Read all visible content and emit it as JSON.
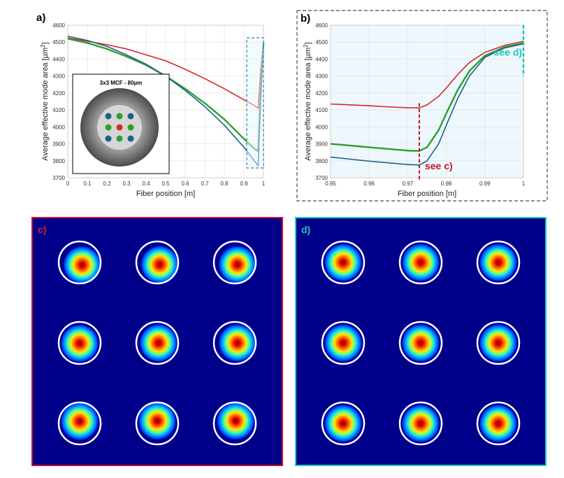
{
  "chart_data": [
    {
      "panel": "a",
      "panel_label": "a)",
      "type": "line",
      "xlabel": "Fiber position [m]",
      "ylabel": "Average effective mode area [µm²]",
      "ylabel_base": "Average effective mode area [µm",
      "ylabel_sup": "2",
      "ylabel_close": "]",
      "xlim": [
        0,
        1
      ],
      "ylim": [
        3700,
        4600
      ],
      "xticks": [
        "0",
        "0.1",
        "0.2",
        "0.3",
        "0.4",
        "0.5",
        "0.6",
        "0.7",
        "0.8",
        "0.9",
        "1"
      ],
      "yticks": [
        "3700",
        "3800",
        "3900",
        "4000",
        "4100",
        "4200",
        "4300",
        "4400",
        "4500",
        "4600"
      ],
      "grid": true,
      "series": [
        {
          "name": "red",
          "color": "#d62728",
          "x": [
            0,
            0.1,
            0.2,
            0.3,
            0.4,
            0.5,
            0.6,
            0.7,
            0.8,
            0.9,
            0.95,
            0.973,
            0.985,
            1
          ],
          "y": [
            4525,
            4505,
            4485,
            4460,
            4425,
            4390,
            4340,
            4285,
            4225,
            4160,
            4128,
            4110,
            4320,
            4500
          ]
        },
        {
          "name": "green",
          "color": "#2ca02c",
          "x": [
            0,
            0.1,
            0.2,
            0.3,
            0.4,
            0.5,
            0.6,
            0.7,
            0.8,
            0.9,
            0.95,
            0.973,
            0.985,
            1
          ],
          "y": [
            4520,
            4495,
            4460,
            4415,
            4365,
            4300,
            4225,
            4140,
            4045,
            3930,
            3875,
            3855,
            4200,
            4495
          ]
        },
        {
          "name": "blue",
          "color": "#1f5f8b",
          "x": [
            0,
            0.1,
            0.2,
            0.3,
            0.4,
            0.5,
            0.6,
            0.7,
            0.8,
            0.9,
            0.95,
            0.973,
            0.985,
            1
          ],
          "y": [
            4535,
            4510,
            4475,
            4425,
            4370,
            4300,
            4215,
            4120,
            4010,
            3880,
            3805,
            3770,
            4150,
            4490
          ]
        }
      ],
      "inset": {
        "title": "3x3 MCF - 80µm",
        "core_colors": [
          [
            "#1f5f8b",
            "#2ca02c",
            "#1f5f8b"
          ],
          [
            "#2ca02c",
            "#d62728",
            "#2ca02c"
          ],
          [
            "#1f5f8b",
            "#2ca02c",
            "#1f5f8b"
          ]
        ]
      }
    },
    {
      "panel": "b",
      "panel_label": "b)",
      "type": "line",
      "xlabel": "Fiber position [m]",
      "ylabel": "Average effective mode area [µm²]",
      "ylabel_base": "Average effective mode area [µm",
      "ylabel_sup": "2",
      "ylabel_close": "]",
      "xlim": [
        0.95,
        1
      ],
      "ylim": [
        3700,
        4600
      ],
      "xticks": [
        "0.95",
        "0.96",
        "0.97",
        "0.98",
        "0.99",
        "1"
      ],
      "yticks": [
        "3700",
        "3800",
        "3900",
        "4000",
        "4100",
        "4200",
        "4300",
        "4400",
        "4500",
        "4600"
      ],
      "grid": true,
      "annotations": [
        {
          "text": "see c)",
          "x": 0.973,
          "color": "#c8102e"
        },
        {
          "text": "see d)",
          "x": 1.0,
          "color": "#14c8b4"
        }
      ],
      "series": [
        {
          "name": "red",
          "color": "#d62728",
          "x": [
            0.95,
            0.955,
            0.96,
            0.965,
            0.97,
            0.973,
            0.975,
            0.978,
            0.98,
            0.983,
            0.986,
            0.99,
            0.995,
            1
          ],
          "y": [
            4135,
            4130,
            4125,
            4118,
            4113,
            4112,
            4130,
            4180,
            4230,
            4310,
            4380,
            4440,
            4480,
            4505
          ]
        },
        {
          "name": "green",
          "color": "#2ca02c",
          "x": [
            0.95,
            0.955,
            0.96,
            0.965,
            0.97,
            0.973,
            0.975,
            0.978,
            0.98,
            0.983,
            0.986,
            0.99,
            0.995,
            1
          ],
          "y": [
            3900,
            3890,
            3880,
            3870,
            3860,
            3858,
            3880,
            3980,
            4080,
            4220,
            4330,
            4420,
            4470,
            4495
          ]
        },
        {
          "name": "blue",
          "color": "#1f5f8b",
          "x": [
            0.95,
            0.955,
            0.96,
            0.965,
            0.97,
            0.973,
            0.975,
            0.978,
            0.98,
            0.983,
            0.986,
            0.99,
            0.995,
            1
          ],
          "y": [
            3822,
            3810,
            3798,
            3788,
            3778,
            3775,
            3800,
            3900,
            4010,
            4170,
            4300,
            4410,
            4465,
            4490
          ]
        }
      ]
    },
    {
      "panel": "c",
      "panel_label": "c)",
      "type": "heatmap",
      "frame_color": "#c8102e",
      "mode_offsets": [
        [
          [
            0.12,
            0.12
          ],
          [
            0.12,
            0.1
          ],
          [
            0.12,
            0.1
          ]
        ],
        [
          [
            0.0,
            0.02
          ],
          [
            0.06,
            0.0
          ],
          [
            0.12,
            0.0
          ]
        ],
        [
          [
            0.0,
            -0.1
          ],
          [
            0.0,
            -0.12
          ],
          [
            0.04,
            -0.12
          ]
        ]
      ]
    },
    {
      "panel": "d",
      "panel_label": "d)",
      "type": "heatmap",
      "frame_color": "#1ec8c8",
      "mode_offsets": [
        [
          [
            0.0,
            0.0
          ],
          [
            0.0,
            0.0
          ],
          [
            0.0,
            0.0
          ]
        ],
        [
          [
            0.0,
            0.0
          ],
          [
            0.0,
            0.0
          ],
          [
            0.0,
            0.0
          ]
        ],
        [
          [
            0.0,
            0.0
          ],
          [
            0.0,
            0.0
          ],
          [
            0.0,
            0.0
          ]
        ]
      ]
    }
  ]
}
